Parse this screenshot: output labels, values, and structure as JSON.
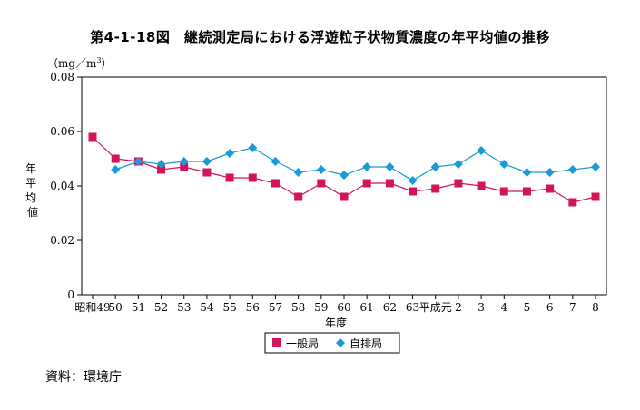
{
  "title": "第4-1-18図　継続測定局における浮遊粒子状物質濃度の年平均値の推移",
  "source": "資料：環境庁",
  "chart_data": {
    "type": "line",
    "unit": "（mg／m",
    "unit_sup": "3",
    "unit_close": "）",
    "ylabel": "年平均値",
    "xlabel": "年度",
    "ylim": [
      0,
      0.08
    ],
    "yticks": [
      "0",
      "0.02",
      "0.04",
      "0.06",
      "0.08"
    ],
    "categories": [
      "昭和49",
      "50",
      "51",
      "52",
      "53",
      "54",
      "55",
      "56",
      "57",
      "58",
      "59",
      "60",
      "61",
      "62",
      "63",
      "平成元",
      "2",
      "3",
      "4",
      "5",
      "6",
      "7",
      "8"
    ],
    "series": [
      {
        "name": "一般局",
        "color": "#d4145a",
        "marker": "square",
        "values": [
          0.058,
          0.05,
          0.049,
          0.046,
          0.047,
          0.045,
          0.043,
          0.043,
          0.041,
          0.036,
          0.041,
          0.036,
          0.041,
          0.041,
          0.038,
          0.039,
          0.041,
          0.04,
          0.038,
          0.038,
          0.039,
          0.034,
          0.036
        ]
      },
      {
        "name": "自排局",
        "color": "#1a9ad6",
        "marker": "diamond",
        "values": [
          null,
          0.046,
          0.049,
          0.048,
          0.049,
          0.049,
          0.052,
          0.054,
          0.049,
          0.045,
          0.046,
          0.044,
          0.047,
          0.047,
          0.042,
          0.047,
          0.048,
          0.053,
          0.048,
          0.045,
          0.045,
          0.046,
          0.047
        ]
      }
    ],
    "legend_position": "bottom-center"
  }
}
